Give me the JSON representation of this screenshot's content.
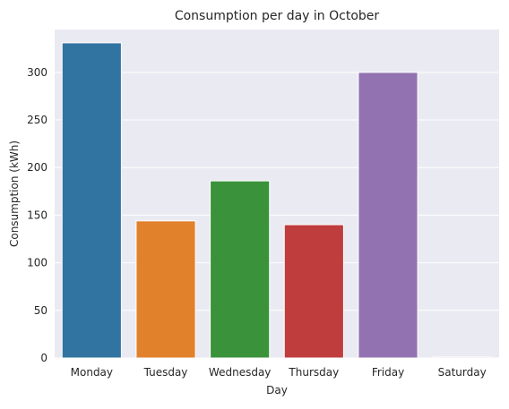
{
  "chart_data": {
    "type": "bar",
    "title": "Consumption per day in October",
    "xlabel": "Day",
    "ylabel": "Consumption (kWh)",
    "categories": [
      "Monday",
      "Tuesday",
      "Wednesday",
      "Thursday",
      "Friday",
      "Saturday"
    ],
    "values": [
      331,
      144,
      186,
      140,
      300,
      1
    ],
    "colors": [
      "#3274a1",
      "#e1812c",
      "#3a923a",
      "#c03d3e",
      "#9372b2",
      "#845b53"
    ],
    "ylim": [
      0,
      345
    ],
    "yticks": [
      0,
      50,
      100,
      150,
      200,
      250,
      300
    ],
    "ytick_labels": [
      "0",
      "50",
      "100",
      "150",
      "200",
      "250",
      "300"
    ],
    "grid": true,
    "background": "#eaeaf2"
  }
}
